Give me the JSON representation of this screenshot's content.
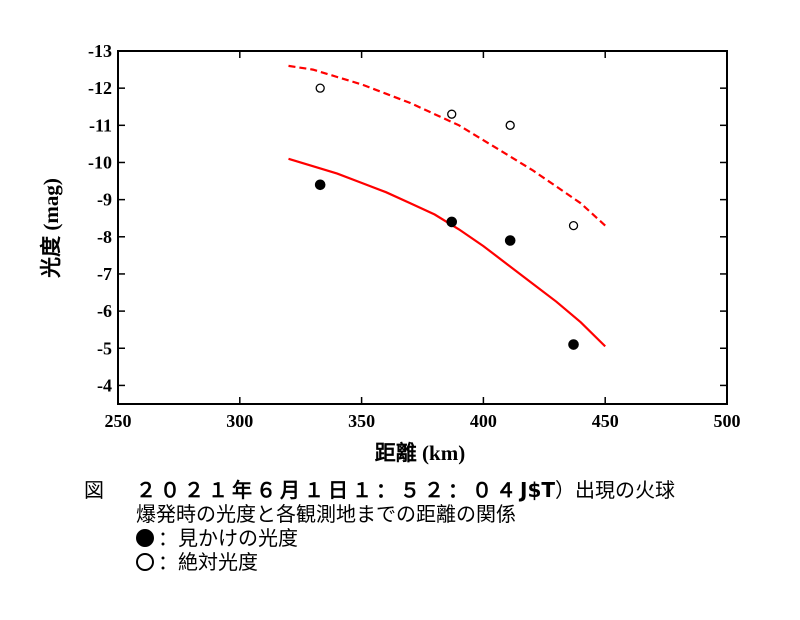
{
  "chart_data": {
    "type": "scatter",
    "xlabel": "距離 (km)",
    "ylabel": "光度 (mag)",
    "xlim": [
      250,
      500
    ],
    "ylim": [
      -13,
      -3.5
    ],
    "y_inverted": true,
    "x_ticks": [
      "250",
      "300",
      "350",
      "400",
      "450",
      "500"
    ],
    "y_ticks": [
      "-13",
      "-12",
      "-11",
      "-10",
      "-9",
      "-8",
      "-7",
      "-6",
      "-5",
      "-4"
    ],
    "series": [
      {
        "name": "見かけの光度",
        "marker": "filled-circle",
        "points": [
          [
            333,
            -9.4
          ],
          [
            387,
            -8.4
          ],
          [
            411,
            -7.9
          ],
          [
            437,
            -5.1
          ]
        ]
      },
      {
        "name": "絶対光度",
        "marker": "open-circle",
        "points": [
          [
            333,
            -12.0
          ],
          [
            387,
            -11.3
          ],
          [
            411,
            -11.0
          ],
          [
            437,
            -8.3
          ]
        ]
      },
      {
        "name": "fit-apparent",
        "style": "solid",
        "color": "#ff0000",
        "points": [
          [
            320,
            -10.1
          ],
          [
            330,
            -9.9
          ],
          [
            340,
            -9.7
          ],
          [
            350,
            -9.45
          ],
          [
            360,
            -9.2
          ],
          [
            370,
            -8.9
          ],
          [
            380,
            -8.6
          ],
          [
            390,
            -8.2
          ],
          [
            400,
            -7.75
          ],
          [
            410,
            -7.25
          ],
          [
            420,
            -6.75
          ],
          [
            430,
            -6.25
          ],
          [
            440,
            -5.7
          ],
          [
            450,
            -5.05
          ]
        ]
      },
      {
        "name": "fit-absolute",
        "style": "dashed",
        "color": "#ff0000",
        "points": [
          [
            320,
            -12.6
          ],
          [
            330,
            -12.5
          ],
          [
            340,
            -12.3
          ],
          [
            350,
            -12.1
          ],
          [
            360,
            -11.85
          ],
          [
            370,
            -11.6
          ],
          [
            380,
            -11.3
          ],
          [
            390,
            -11.0
          ],
          [
            400,
            -10.6
          ],
          [
            410,
            -10.2
          ],
          [
            420,
            -9.8
          ],
          [
            430,
            -9.35
          ],
          [
            440,
            -8.9
          ],
          [
            450,
            -8.3
          ]
        ]
      }
    ]
  },
  "caption": {
    "fig_label": "図",
    "line1_prefix": "２０２１年６月１日１：５２：０４",
    "line1_tz": "J$T",
    "line1_suffix": "）出現の火球",
    "line2": "爆発時の光度と各観測地までの距離の関係",
    "legend_filled": "：見かけの光度",
    "legend_open": "：絶対光度"
  }
}
